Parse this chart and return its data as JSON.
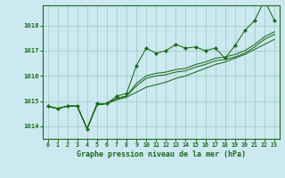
{
  "xlabel": "Graphe pression niveau de la mer (hPa)",
  "bg_color": "#cce8f0",
  "line_color": "#1a6b1a",
  "grid_color": "#99ccbb",
  "ylim": [
    1013.5,
    1018.8
  ],
  "xlim": [
    -0.5,
    23.5
  ],
  "yticks": [
    1014,
    1015,
    1016,
    1017,
    1018
  ],
  "xticks": [
    0,
    1,
    2,
    3,
    4,
    5,
    6,
    7,
    8,
    9,
    10,
    11,
    12,
    13,
    14,
    15,
    16,
    17,
    18,
    19,
    20,
    21,
    22,
    23
  ],
  "main_y": [
    1014.8,
    1014.7,
    1014.8,
    1014.8,
    1013.9,
    1014.9,
    1014.9,
    1015.2,
    1015.3,
    1016.4,
    1017.1,
    1016.9,
    1017.0,
    1017.25,
    1017.1,
    1017.15,
    1017.0,
    1017.1,
    1016.7,
    1017.2,
    1017.8,
    1018.2,
    1019.0,
    1018.2
  ],
  "reg1": [
    1014.8,
    1014.7,
    1014.8,
    1014.8,
    1013.9,
    1014.85,
    1014.9,
    1015.05,
    1015.15,
    1015.35,
    1015.55,
    1015.65,
    1015.75,
    1015.9,
    1016.0,
    1016.15,
    1016.3,
    1016.45,
    1016.55,
    1016.7,
    1016.85,
    1017.05,
    1017.25,
    1017.45
  ],
  "reg2": [
    1014.8,
    1014.7,
    1014.8,
    1014.8,
    1013.9,
    1014.85,
    1014.9,
    1015.1,
    1015.2,
    1015.6,
    1015.9,
    1016.0,
    1016.05,
    1016.15,
    1016.2,
    1016.35,
    1016.45,
    1016.6,
    1016.65,
    1016.75,
    1016.9,
    1017.15,
    1017.45,
    1017.65
  ],
  "reg3": [
    1014.8,
    1014.7,
    1014.8,
    1014.8,
    1013.9,
    1014.85,
    1014.9,
    1015.1,
    1015.2,
    1015.7,
    1016.0,
    1016.1,
    1016.15,
    1016.25,
    1016.3,
    1016.45,
    1016.55,
    1016.7,
    1016.75,
    1016.85,
    1017.0,
    1017.25,
    1017.55,
    1017.75
  ],
  "xlabel_fontsize": 6.0,
  "tick_fontsize": 4.8,
  "ytick_fontsize": 5.2
}
